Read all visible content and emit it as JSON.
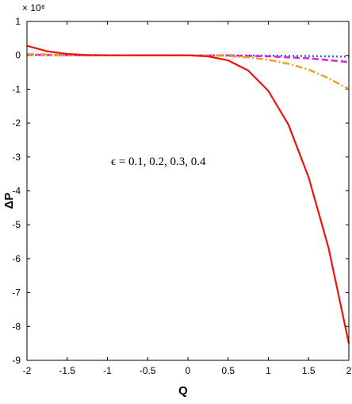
{
  "chart_data": {
    "type": "line",
    "xlabel": "Q",
    "ylabel": "ΔP",
    "multiplier_label": "× 10⁸",
    "annotation": "ϵ = 0.1, 0.2, 0.3, 0.4",
    "xlim": [
      -2,
      2
    ],
    "ylim": [
      -9,
      1
    ],
    "x_ticks": [
      "-2",
      "-1.5",
      "-1",
      "-0.5",
      "0",
      "0.5",
      "1",
      "1.5",
      "2"
    ],
    "y_ticks": [
      "1",
      "0",
      "-1",
      "-2",
      "-3",
      "-4",
      "-5",
      "-6",
      "-7",
      "-8",
      "-9"
    ],
    "grid": false,
    "series": [
      {
        "style": "dotted",
        "color": "#2e6fc7",
        "x": [
          -2,
          -1.5,
          -1,
          -0.5,
          0,
          0.5,
          1,
          1.5,
          2
        ],
        "y": [
          0.01,
          0.0,
          0.0,
          0.0,
          0.0,
          0.0,
          -0.01,
          -0.02,
          -0.04
        ]
      },
      {
        "style": "dashed",
        "color": "#e020e0",
        "x": [
          -2,
          -1.5,
          -1,
          -0.5,
          0,
          0.5,
          1,
          1.5,
          2
        ],
        "y": [
          0.02,
          0.005,
          0.0,
          0.0,
          0.0,
          -0.005,
          -0.03,
          -0.09,
          -0.2
        ]
      },
      {
        "style": "dashdot",
        "color": "#f0a020",
        "x": [
          -2,
          -1.5,
          -1,
          -0.5,
          0,
          0.25,
          0.5,
          0.75,
          1,
          1.25,
          1.5,
          1.75,
          2
        ],
        "y": [
          0.04,
          0.01,
          0.0,
          0.0,
          0.0,
          0.0,
          -0.02,
          -0.06,
          -0.13,
          -0.25,
          -0.42,
          -0.68,
          -1.0
        ]
      },
      {
        "style": "solid",
        "color": "#ee1111",
        "x": [
          -2,
          -1.75,
          -1.5,
          -1.25,
          -1,
          -0.5,
          0,
          0.25,
          0.5,
          0.75,
          1,
          1.25,
          1.5,
          1.75,
          2
        ],
        "y": [
          0.28,
          0.12,
          0.04,
          0.01,
          0.0,
          0.0,
          0.0,
          -0.03,
          -0.15,
          -0.45,
          -1.05,
          -2.05,
          -3.6,
          -5.7,
          -8.5
        ]
      }
    ]
  }
}
